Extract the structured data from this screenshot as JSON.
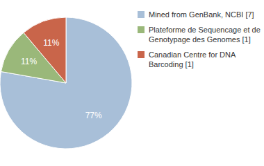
{
  "chart_data": {
    "type": "pie",
    "categories": [
      "Mined from GenBank, NCBI [7]",
      "Plateforme de Sequencage et de\nGenotypage des Genomes [1]",
      "Canadian Centre for DNA\nBarcoding [1]"
    ],
    "values": [
      77,
      11,
      11
    ],
    "value_labels": [
      "77%",
      "11%",
      "11%"
    ],
    "colors": [
      "#a8bfd8",
      "#9ab87a",
      "#c9654a"
    ],
    "data_labels": true,
    "legend": "right"
  }
}
